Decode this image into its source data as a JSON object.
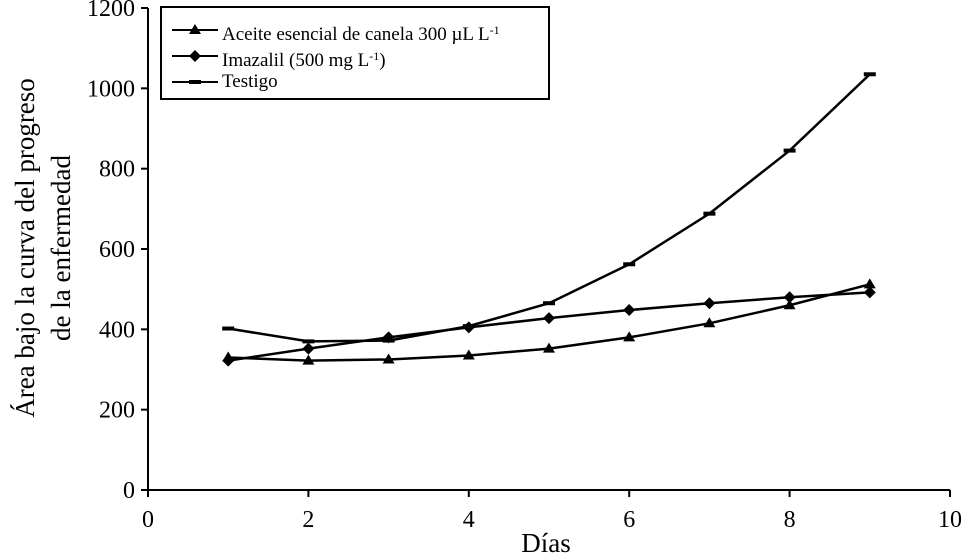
{
  "chart_data": {
    "type": "line",
    "title": "",
    "xlabel": "Días",
    "ylabel_line1": "Área bajo la curva del progreso",
    "ylabel_line2": "de la enfermedad",
    "xlim": [
      0,
      10
    ],
    "ylim": [
      0,
      1200
    ],
    "x_ticks": [
      0,
      2,
      4,
      6,
      8,
      10
    ],
    "y_ticks": [
      0,
      200,
      400,
      600,
      800,
      1000,
      1200
    ],
    "x": [
      1,
      2,
      3,
      4,
      5,
      6,
      7,
      8,
      9
    ],
    "series": [
      {
        "name": "Aceite esencial de canela 300 µL L-1",
        "marker": "triangle",
        "values": [
          330,
          322,
          325,
          335,
          352,
          380,
          415,
          460,
          512
        ]
      },
      {
        "name": "Imazalil (500 mg L-1)",
        "marker": "diamond",
        "values": [
          322,
          352,
          380,
          405,
          428,
          448,
          465,
          480,
          492
        ]
      },
      {
        "name": "Testigo",
        "marker": "dash",
        "values": [
          402,
          370,
          372,
          408,
          465,
          562,
          688,
          845,
          1035
        ]
      }
    ],
    "legend_position": "top-left"
  },
  "legend": {
    "items": [
      {
        "text": "Aceite esencial de canela 300 µL L",
        "sup": "-1",
        "marker": "triangle"
      },
      {
        "text": "Imazalil (500 mg L",
        "sup": "-1",
        "suffix": ")",
        "marker": "diamond"
      },
      {
        "text": "Testigo",
        "sup": "",
        "marker": "dash"
      }
    ]
  }
}
